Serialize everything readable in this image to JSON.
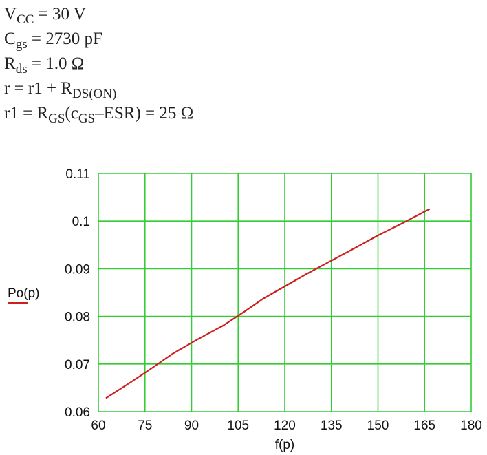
{
  "equations": {
    "line1": {
      "base": "V",
      "sub": "CC",
      "rest": " = 30 V"
    },
    "line2": {
      "base": "C",
      "sub": "gs",
      "rest": " = 2730 pF"
    },
    "line3": {
      "base": "R",
      "sub": "ds",
      "rest": " = 1.0 Ω"
    },
    "line4": {
      "pre": "r = r1 + R",
      "sub": "DS(ON)"
    },
    "line5": {
      "pre": "r1 = R",
      "sub1": "GS",
      "mid": "(c",
      "sub2": "GS",
      "rest": "–ESR) = 25 Ω"
    }
  },
  "colors": {
    "grid": "#33cc33",
    "series": "#cc1f1f",
    "text": "#111111"
  },
  "chart_data": {
    "type": "line",
    "title": "",
    "xlabel": "f(p)",
    "ylabel": "Po(p)",
    "xlim": [
      60,
      180
    ],
    "ylim": [
      0.06,
      0.11
    ],
    "x_ticks": [
      "60",
      "75",
      "90",
      "105",
      "120",
      "135",
      "150",
      "165",
      "180"
    ],
    "y_ticks": [
      "0.06",
      "0.07",
      "0.08",
      "0.09",
      "0.1",
      "0.11"
    ],
    "grid": true,
    "series": [
      {
        "name": "",
        "x": [
          62.6,
          70,
          76,
          84,
          92,
          100,
          107,
          113,
          120,
          127,
          135,
          143,
          150,
          158,
          166.5
        ],
        "y": [
          0.0629,
          0.066,
          0.0686,
          0.0722,
          0.0752,
          0.078,
          0.081,
          0.0837,
          0.0863,
          0.0889,
          0.0917,
          0.0945,
          0.097,
          0.0996,
          0.1025
        ]
      }
    ]
  }
}
